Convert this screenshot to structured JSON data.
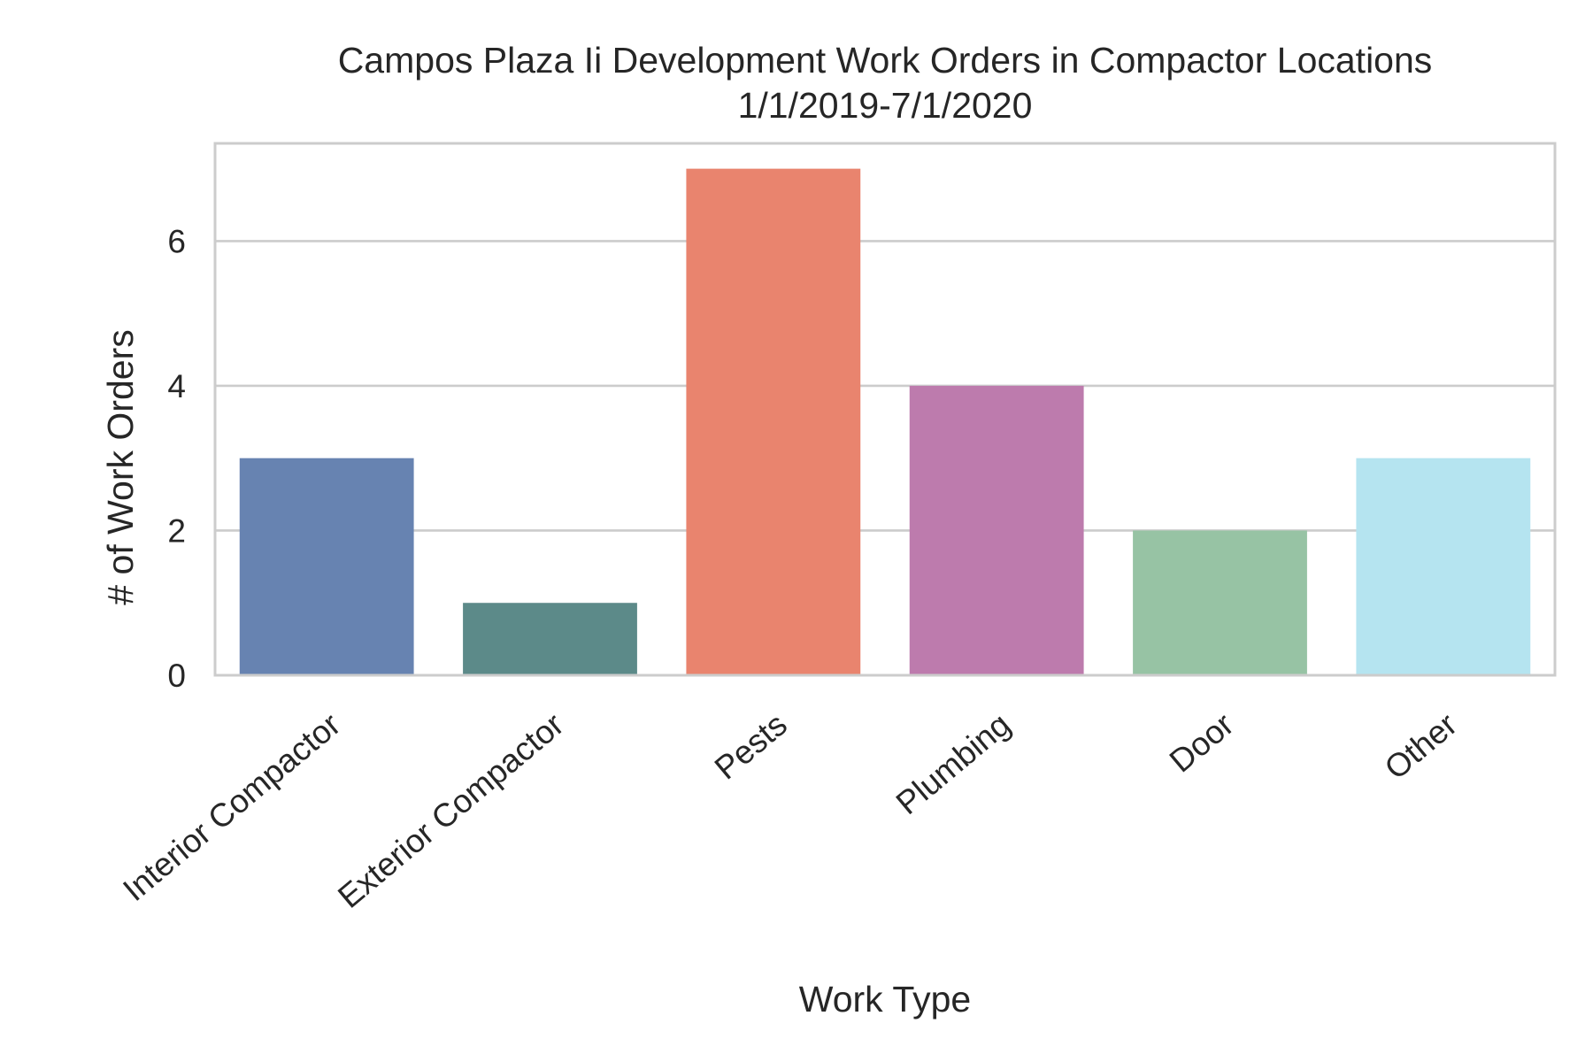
{
  "chart_data": {
    "type": "bar",
    "title": "Campos Plaza Ii Development Work Orders in Compactor Locations",
    "subtitle": "1/1/2019-7/1/2020",
    "xlabel": "Work Type",
    "ylabel": "# of Work Orders",
    "categories": [
      "Interior Compactor",
      "Exterior Compactor",
      "Pests",
      "Plumbing",
      "Door",
      "Other"
    ],
    "values": [
      3,
      1,
      7,
      4,
      2,
      3
    ],
    "colors": [
      "#6783b1",
      "#5c8a89",
      "#e9846e",
      "#bd7bad",
      "#97c3a4",
      "#b5e4f0"
    ],
    "ylim": [
      0,
      7.35
    ],
    "yticks": [
      0,
      2,
      4,
      6
    ],
    "ytick_labels": [
      "0",
      "2",
      "4",
      "6"
    ],
    "grid": true,
    "legend": "none"
  }
}
